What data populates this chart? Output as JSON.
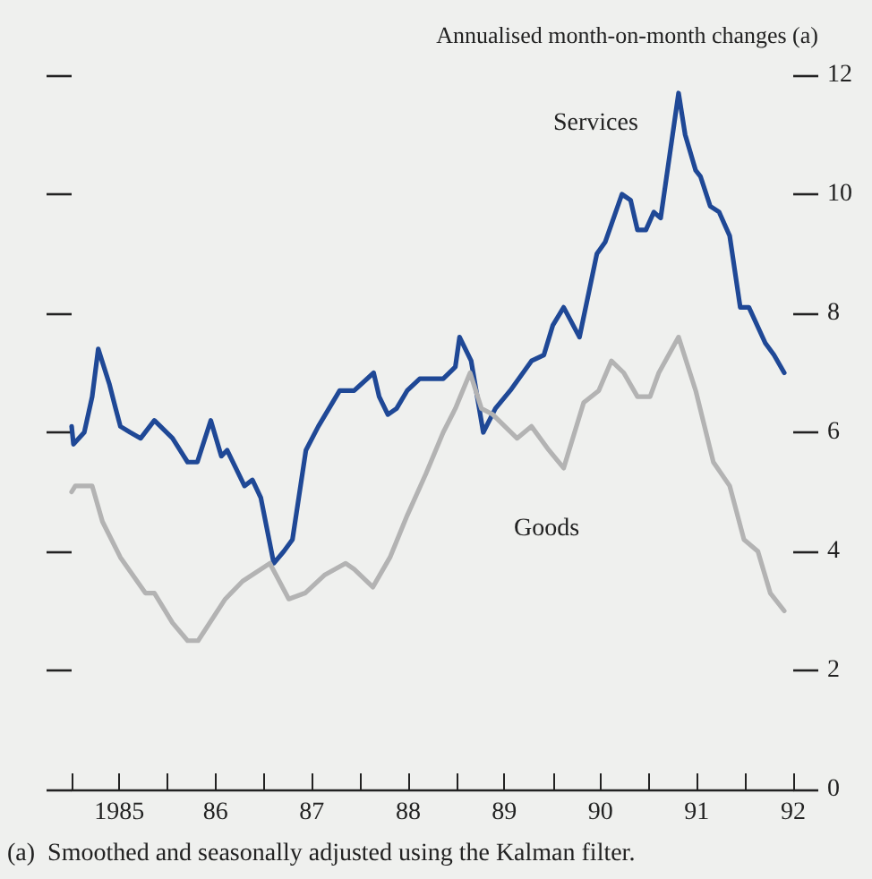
{
  "chart_data": {
    "type": "line",
    "ylabel": "Annualised month-on-month changes (a)",
    "annotations": [
      "(a)  Smoothed and seasonally adjusted using the Kalman filter."
    ],
    "xlim": [
      "1985-01-01",
      "1992-07-01"
    ],
    "xticks": [
      {
        "value": "1985-01-01",
        "label": null
      },
      {
        "value": "1985-07-01",
        "label": "1985"
      },
      {
        "value": "1986-01-01",
        "label": null
      },
      {
        "value": "1986-07-01",
        "label": "86"
      },
      {
        "value": "1987-01-01",
        "label": null
      },
      {
        "value": "1987-07-01",
        "label": "87"
      },
      {
        "value": "1988-01-01",
        "label": null
      },
      {
        "value": "1988-07-01",
        "label": "88"
      },
      {
        "value": "1989-01-01",
        "label": null
      },
      {
        "value": "1989-07-01",
        "label": "89"
      },
      {
        "value": "1990-01-01",
        "label": null
      },
      {
        "value": "1990-07-01",
        "label": "90"
      },
      {
        "value": "1991-01-01",
        "label": null
      },
      {
        "value": "1991-07-01",
        "label": "91"
      },
      {
        "value": "1992-01-01",
        "label": null
      },
      {
        "value": "1992-07-01",
        "label": "92"
      }
    ],
    "ylim": [
      0,
      12
    ],
    "yticks": [
      0,
      2,
      4,
      6,
      8,
      10,
      12
    ],
    "grid": false,
    "legend": false,
    "marker": "none",
    "line_style": "solid",
    "series": [
      {
        "name": "Services",
        "color": "#1f4896",
        "x": [
          "1985-01-01",
          "1985-01-08",
          "1985-02-18",
          "1985-03-20",
          "1985-04-12",
          "1985-05-25",
          "1985-06-17",
          "1985-07-05",
          "1985-08-11",
          "1985-09-20",
          "1985-11-11",
          "1986-01-19",
          "1986-03-17",
          "1986-04-23",
          "1986-06-13",
          "1986-07-23",
          "1986-08-14",
          "1986-10-19",
          "1986-11-18",
          "1986-12-20",
          "1987-02-07",
          "1987-03-17",
          "1987-04-19",
          "1987-06-09",
          "1987-07-26",
          "1987-10-15",
          "1987-12-09",
          "1988-02-21",
          "1988-03-13",
          "1988-04-15",
          "1988-05-18",
          "1988-06-27",
          "1988-08-14",
          "1988-10-15",
          "1988-11-11",
          "1988-12-27",
          "1989-01-12",
          "1989-02-25",
          "1989-04-12",
          "1989-05-28",
          "1989-07-23",
          "1989-10-12",
          "1989-11-28",
          "1990-01-01",
          "1990-02-11",
          "1990-04-12",
          "1990-06-17",
          "1990-07-19",
          "1990-09-20",
          "1990-10-23",
          "1990-11-18",
          "1990-12-20",
          "1991-01-19",
          "1991-02-14",
          "1991-04-23",
          "1991-05-18",
          "1991-06-27",
          "1991-07-15",
          "1991-08-21",
          "1991-09-24",
          "1991-11-03",
          "1991-12-13",
          "1992-01-15",
          "1992-03-17",
          "1992-04-19",
          "1992-05-28"
        ],
        "values": [
          6.1,
          5.8,
          6.0,
          6.6,
          7.4,
          6.8,
          6.4,
          6.1,
          6.0,
          5.9,
          6.2,
          5.9,
          5.5,
          5.5,
          6.2,
          5.6,
          5.7,
          5.1,
          5.2,
          4.9,
          3.8,
          4.0,
          4.2,
          5.7,
          6.1,
          6.7,
          6.7,
          7.0,
          6.6,
          6.3,
          6.4,
          6.7,
          6.9,
          6.9,
          6.9,
          7.1,
          7.6,
          7.2,
          6.0,
          6.4,
          6.7,
          7.2,
          7.3,
          7.8,
          8.1,
          7.6,
          9.0,
          9.2,
          10.0,
          9.9,
          9.4,
          9.4,
          9.7,
          9.6,
          11.7,
          11.0,
          10.4,
          10.3,
          9.8,
          9.7,
          9.3,
          8.1,
          8.1,
          7.5,
          7.3,
          7.0
        ]
      },
      {
        "name": "Goods",
        "color": "#b3b3b3",
        "x": [
          "1985-01-01",
          "1985-01-15",
          "1985-03-20",
          "1985-04-28",
          "1985-07-05",
          "1985-10-08",
          "1985-11-11",
          "1986-01-19",
          "1986-03-17",
          "1986-04-26",
          "1986-08-07",
          "1986-10-12",
          "1987-01-23",
          "1987-04-05",
          "1987-06-06",
          "1987-08-18",
          "1987-11-07",
          "1987-12-09",
          "1988-02-18",
          "1988-04-23",
          "1988-06-27",
          "1988-09-06",
          "1988-11-11",
          "1988-12-27",
          "1989-02-21",
          "1989-04-05",
          "1989-05-18",
          "1989-08-18",
          "1989-10-12",
          "1989-12-17",
          "1990-02-11",
          "1990-04-28",
          "1990-06-24",
          "1990-08-11",
          "1990-09-27",
          "1990-11-18",
          "1991-01-05",
          "1991-02-07",
          "1991-04-23",
          "1991-06-27",
          "1991-09-02",
          "1991-11-03",
          "1991-12-27",
          "1992-02-18",
          "1992-04-05",
          "1992-05-28"
        ],
        "values": [
          5.0,
          5.1,
          5.1,
          4.5,
          3.9,
          3.3,
          3.3,
          2.8,
          2.5,
          2.5,
          3.2,
          3.5,
          3.8,
          3.2,
          3.3,
          3.6,
          3.8,
          3.7,
          3.4,
          3.9,
          4.6,
          5.3,
          6.0,
          6.4,
          7.0,
          6.4,
          6.3,
          5.9,
          6.1,
          5.7,
          5.4,
          6.5,
          6.7,
          7.2,
          7.0,
          6.6,
          6.6,
          7.0,
          7.6,
          6.7,
          5.5,
          5.1,
          4.2,
          4.0,
          3.3,
          3.0
        ]
      }
    ]
  }
}
